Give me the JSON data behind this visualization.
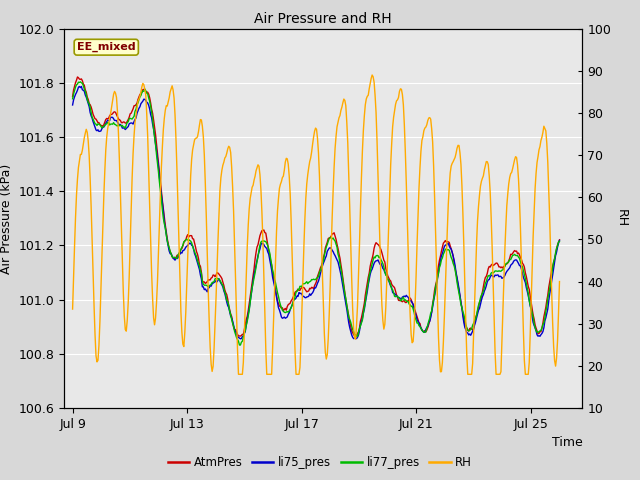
{
  "title": "Air Pressure and RH",
  "ylabel_left": "Air Pressure (kPa)",
  "ylabel_right": "RH",
  "xlabel": "Time",
  "ylim_left": [
    100.6,
    102.0
  ],
  "ylim_right": [
    10,
    100
  ],
  "yticks_left": [
    100.6,
    100.8,
    101.0,
    101.2,
    101.4,
    101.6,
    101.8,
    102.0
  ],
  "yticks_right": [
    10,
    20,
    30,
    40,
    50,
    60,
    70,
    80,
    90,
    100
  ],
  "xtick_positions": [
    0,
    4,
    8,
    12,
    16
  ],
  "xtick_labels": [
    "Jul 9",
    "Jul 13",
    "Jul 17",
    "Jul 21",
    "Jul 25"
  ],
  "xlim": [
    -0.3,
    17.8
  ],
  "annotation_text": "EE_mixed",
  "annotation_color": "#800000",
  "annotation_bg": "#ffffcc",
  "annotation_border": "#999900",
  "colors": {
    "AtmPres": "#cc0000",
    "li75_pres": "#0000cc",
    "li77_pres": "#00bb00",
    "RH": "#ffaa00"
  },
  "fig_bg": "#d8d8d8",
  "plot_bg": "#e8e8e8",
  "grid_color": "#ffffff",
  "linewidth": 1.0,
  "n_points": 500,
  "time_end": 17.0,
  "seed": 42
}
